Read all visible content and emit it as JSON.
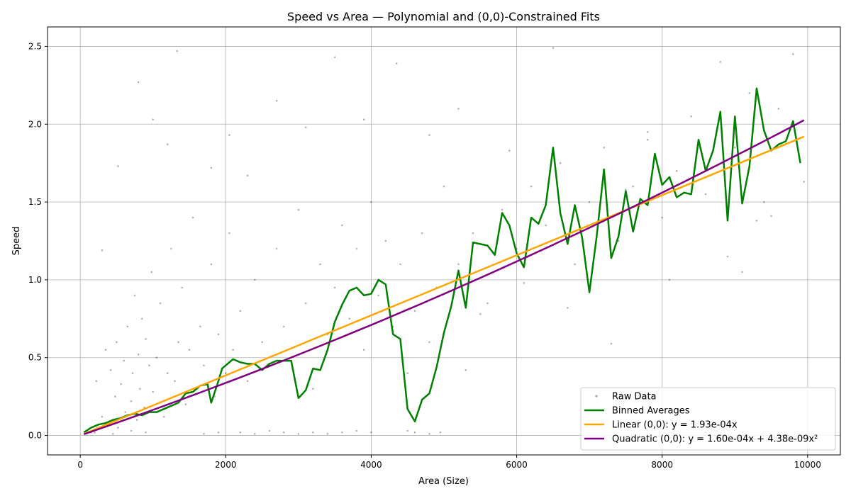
{
  "chart_data": {
    "type": "scatter",
    "title": "Speed vs Area — Polynomial and (0,0)-Constrained Fits",
    "xlabel": "Area (Size)",
    "ylabel": "Speed",
    "xlim": [
      -450,
      10450
    ],
    "ylim": [
      -0.125,
      2.625
    ],
    "x_ticks": [
      0,
      2000,
      4000,
      6000,
      8000,
      10000
    ],
    "x_tick_labels": [
      "0",
      "2000",
      "4000",
      "6000",
      "8000",
      "10000"
    ],
    "y_ticks": [
      0.0,
      0.5,
      1.0,
      1.5,
      2.0,
      2.5
    ],
    "y_tick_labels": [
      "0.0",
      "0.5",
      "1.0",
      "1.5",
      "2.0",
      "2.5"
    ],
    "grid": true,
    "legend_position": "lower-right",
    "series": [
      {
        "name": "Raw Data",
        "kind": "scatter",
        "color": "#000000",
        "points": [
          [
            150,
            0.02
          ],
          [
            220,
            0.35
          ],
          [
            300,
            0.12
          ],
          [
            350,
            0.55
          ],
          [
            400,
            0.08
          ],
          [
            420,
            0.42
          ],
          [
            480,
            0.25
          ],
          [
            500,
            0.6
          ],
          [
            520,
            0.05
          ],
          [
            560,
            0.33
          ],
          [
            600,
            0.48
          ],
          [
            620,
            0.15
          ],
          [
            650,
            0.7
          ],
          [
            700,
            0.22
          ],
          [
            720,
            0.4
          ],
          [
            750,
            0.9
          ],
          [
            780,
            0.1
          ],
          [
            800,
            0.52
          ],
          [
            820,
            0.3
          ],
          [
            850,
            0.75
          ],
          [
            880,
            0.18
          ],
          [
            900,
            0.62
          ],
          [
            950,
            0.45
          ],
          [
            980,
            1.05
          ],
          [
            1000,
            0.28
          ],
          [
            1050,
            0.5
          ],
          [
            1100,
            0.85
          ],
          [
            1150,
            0.12
          ],
          [
            1200,
            0.4
          ],
          [
            1250,
            1.2
          ],
          [
            1300,
            0.35
          ],
          [
            1350,
            0.6
          ],
          [
            1400,
            0.95
          ],
          [
            1450,
            0.2
          ],
          [
            1500,
            0.55
          ],
          [
            1550,
            1.4
          ],
          [
            1600,
            0.3
          ],
          [
            1650,
            0.7
          ],
          [
            1700,
            0.45
          ],
          [
            1800,
            1.1
          ],
          [
            1850,
            0.25
          ],
          [
            1900,
            0.65
          ],
          [
            2000,
            0.4
          ],
          [
            2050,
            1.3
          ],
          [
            2100,
            0.55
          ],
          [
            2200,
            0.8
          ],
          [
            2300,
            0.35
          ],
          [
            2400,
            1.0
          ],
          [
            2500,
            0.6
          ],
          [
            2600,
            0.45
          ],
          [
            2700,
            1.2
          ],
          [
            2800,
            0.7
          ],
          [
            2900,
            0.5
          ],
          [
            3000,
            1.45
          ],
          [
            3100,
            0.85
          ],
          [
            3200,
            0.3
          ],
          [
            3300,
            1.1
          ],
          [
            3400,
            0.65
          ],
          [
            3500,
            0.95
          ],
          [
            3600,
            1.35
          ],
          [
            3700,
            0.75
          ],
          [
            3800,
            1.2
          ],
          [
            3900,
            0.55
          ],
          [
            4000,
            1.5
          ],
          [
            4100,
            0.9
          ],
          [
            4200,
            1.25
          ],
          [
            4300,
            0.7
          ],
          [
            4400,
            1.1
          ],
          [
            4500,
            0.4
          ],
          [
            4600,
            0.8
          ],
          [
            4700,
            1.3
          ],
          [
            4800,
            0.6
          ],
          [
            4900,
            0.95
          ],
          [
            5000,
            1.6
          ],
          [
            5200,
            1.1
          ],
          [
            5400,
            1.3
          ],
          [
            5600,
            0.85
          ],
          [
            5800,
            1.45
          ],
          [
            6000,
            1.2
          ],
          [
            6200,
            1.6
          ],
          [
            6400,
            1.35
          ],
          [
            6600,
            1.75
          ],
          [
            6800,
            1.1
          ],
          [
            7000,
            1.5
          ],
          [
            7200,
            1.85
          ],
          [
            7400,
            1.25
          ],
          [
            7600,
            1.6
          ],
          [
            7800,
            1.95
          ],
          [
            8000,
            1.4
          ],
          [
            8200,
            1.7
          ],
          [
            8400,
            2.05
          ],
          [
            8600,
            1.55
          ],
          [
            8800,
            2.4
          ],
          [
            9000,
            1.85
          ],
          [
            9200,
            2.2
          ],
          [
            9400,
            1.5
          ],
          [
            9600,
            2.1
          ],
          [
            9800,
            2.45
          ],
          [
            1330,
            2.47
          ],
          [
            800,
            2.27
          ],
          [
            3500,
            2.43
          ],
          [
            4350,
            2.39
          ],
          [
            6500,
            2.49
          ],
          [
            1000,
            2.03
          ],
          [
            2700,
            2.15
          ],
          [
            5200,
            2.1
          ],
          [
            2050,
            1.93
          ],
          [
            9950,
            1.63
          ],
          [
            7000,
            0.92
          ],
          [
            7300,
            0.59
          ],
          [
            300,
            1.19
          ],
          [
            520,
            1.73
          ],
          [
            1200,
            1.87
          ],
          [
            1800,
            1.72
          ],
          [
            2300,
            1.67
          ],
          [
            3100,
            1.98
          ],
          [
            3900,
            2.03
          ],
          [
            4800,
            1.93
          ],
          [
            5900,
            1.83
          ],
          [
            7500,
            1.58
          ],
          [
            8100,
            1.0
          ],
          [
            9100,
            1.05
          ],
          [
            9300,
            1.38
          ],
          [
            9500,
            1.41
          ],
          [
            5300,
            0.42
          ],
          [
            5500,
            0.78
          ],
          [
            6100,
            0.98
          ],
          [
            6700,
            0.82
          ],
          [
            7800,
            1.9
          ],
          [
            8900,
            1.15
          ],
          [
            2200,
            0.02
          ],
          [
            2400,
            0.01
          ],
          [
            2600,
            0.03
          ],
          [
            2800,
            0.02
          ],
          [
            3000,
            0.01
          ],
          [
            3200,
            0.02
          ],
          [
            3400,
            0.01
          ],
          [
            4500,
            0.03
          ],
          [
            4600,
            0.02
          ],
          [
            4800,
            0.01
          ],
          [
            4950,
            0.02
          ],
          [
            3600,
            0.02
          ],
          [
            3800,
            0.03
          ],
          [
            4000,
            0.02
          ],
          [
            1700,
            0.01
          ],
          [
            1900,
            0.02
          ],
          [
            200,
            0.02
          ],
          [
            450,
            0.01
          ],
          [
            700,
            0.03
          ],
          [
            900,
            0.02
          ]
        ]
      },
      {
        "name": "Binned Averages",
        "kind": "line",
        "color": "#008000",
        "points": [
          [
            50,
            0.02
          ],
          [
            150,
            0.05
          ],
          [
            250,
            0.07
          ],
          [
            350,
            0.08
          ],
          [
            450,
            0.1
          ],
          [
            550,
            0.11
          ],
          [
            650,
            0.13
          ],
          [
            750,
            0.14
          ],
          [
            850,
            0.13
          ],
          [
            950,
            0.15
          ],
          [
            1050,
            0.15
          ],
          [
            1150,
            0.17
          ],
          [
            1250,
            0.19
          ],
          [
            1350,
            0.21
          ],
          [
            1450,
            0.27
          ],
          [
            1550,
            0.28
          ],
          [
            1650,
            0.32
          ],
          [
            1750,
            0.33
          ],
          [
            1800,
            0.21
          ],
          [
            1900,
            0.35
          ],
          [
            1950,
            0.43
          ],
          [
            2050,
            0.47
          ],
          [
            2100,
            0.49
          ],
          [
            2200,
            0.47
          ],
          [
            2300,
            0.46
          ],
          [
            2400,
            0.46
          ],
          [
            2500,
            0.42
          ],
          [
            2600,
            0.46
          ],
          [
            2700,
            0.48
          ],
          [
            2800,
            0.48
          ],
          [
            2900,
            0.48
          ],
          [
            3000,
            0.24
          ],
          [
            3100,
            0.29
          ],
          [
            3200,
            0.43
          ],
          [
            3300,
            0.42
          ],
          [
            3400,
            0.55
          ],
          [
            3500,
            0.73
          ],
          [
            3600,
            0.84
          ],
          [
            3700,
            0.93
          ],
          [
            3800,
            0.95
          ],
          [
            3900,
            0.9
          ],
          [
            4000,
            0.91
          ],
          [
            4100,
            1.0
          ],
          [
            4200,
            0.97
          ],
          [
            4300,
            0.65
          ],
          [
            4400,
            0.62
          ],
          [
            4500,
            0.17
          ],
          [
            4600,
            0.09
          ],
          [
            4700,
            0.23
          ],
          [
            4800,
            0.27
          ],
          [
            4900,
            0.44
          ],
          [
            5000,
            0.66
          ],
          [
            5100,
            0.83
          ],
          [
            5200,
            1.06
          ],
          [
            5300,
            0.82
          ],
          [
            5400,
            1.24
          ],
          [
            5500,
            1.23
          ],
          [
            5600,
            1.22
          ],
          [
            5700,
            1.16
          ],
          [
            5800,
            1.43
          ],
          [
            5900,
            1.35
          ],
          [
            6000,
            1.17
          ],
          [
            6100,
            1.08
          ],
          [
            6200,
            1.4
          ],
          [
            6300,
            1.36
          ],
          [
            6400,
            1.48
          ],
          [
            6500,
            1.85
          ],
          [
            6600,
            1.43
          ],
          [
            6700,
            1.23
          ],
          [
            6800,
            1.48
          ],
          [
            6900,
            1.27
          ],
          [
            7000,
            0.92
          ],
          [
            7100,
            1.28
          ],
          [
            7200,
            1.71
          ],
          [
            7300,
            1.14
          ],
          [
            7400,
            1.28
          ],
          [
            7500,
            1.57
          ],
          [
            7600,
            1.31
          ],
          [
            7700,
            1.52
          ],
          [
            7800,
            1.48
          ],
          [
            7900,
            1.81
          ],
          [
            8000,
            1.61
          ],
          [
            8100,
            1.66
          ],
          [
            8200,
            1.53
          ],
          [
            8300,
            1.56
          ],
          [
            8400,
            1.55
          ],
          [
            8500,
            1.9
          ],
          [
            8600,
            1.7
          ],
          [
            8700,
            1.83
          ],
          [
            8800,
            2.08
          ],
          [
            8900,
            1.38
          ],
          [
            9000,
            2.05
          ],
          [
            9100,
            1.49
          ],
          [
            9200,
            1.73
          ],
          [
            9300,
            2.23
          ],
          [
            9400,
            1.96
          ],
          [
            9500,
            1.83
          ],
          [
            9600,
            1.87
          ],
          [
            9700,
            1.89
          ],
          [
            9800,
            2.02
          ],
          [
            9900,
            1.75
          ]
        ]
      },
      {
        "name": "Linear (0,0): y = 1.93e-04x",
        "kind": "function",
        "color": "#FFA500",
        "coefficients": [
          0,
          0.000193,
          0
        ],
        "x_range": [
          50,
          9950
        ]
      },
      {
        "name": "Quadratic (0,0): y = 1.60e-04x + 4.38e-09x²",
        "kind": "function",
        "color": "#800080",
        "coefficients": [
          0,
          0.00016,
          4.38e-09
        ],
        "x_range": [
          50,
          9950
        ]
      }
    ]
  }
}
